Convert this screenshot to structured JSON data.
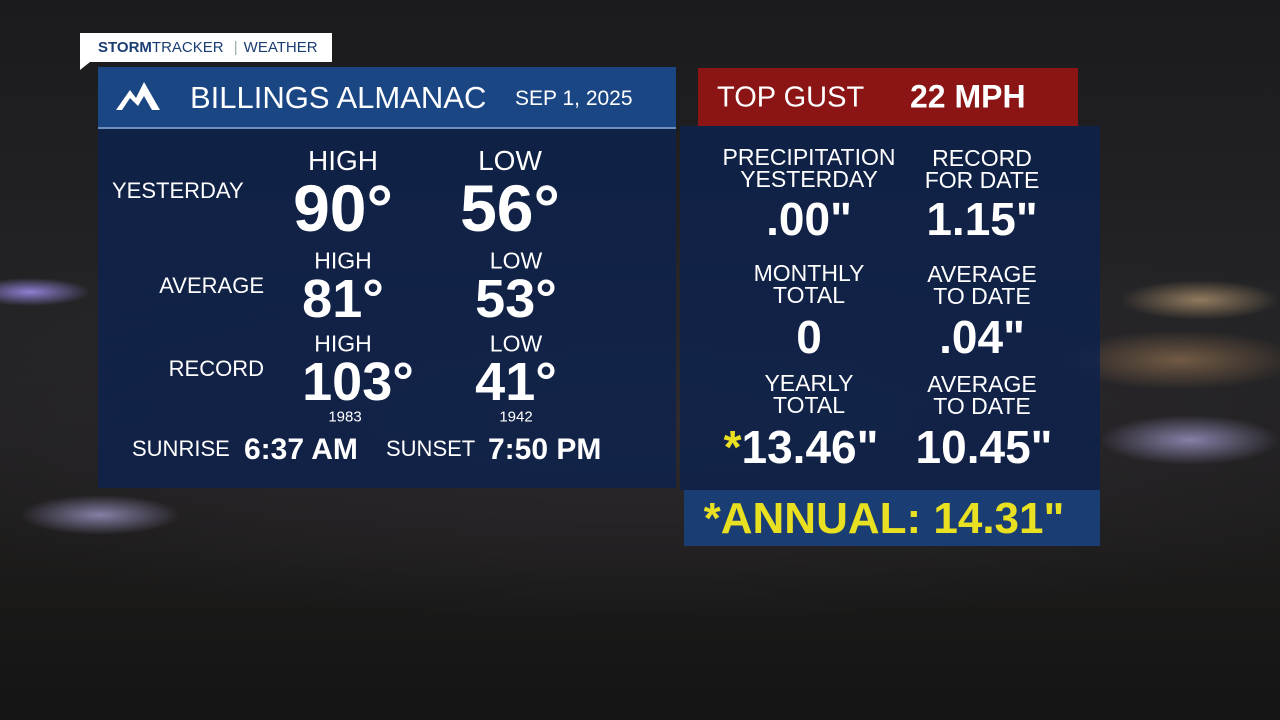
{
  "brand": {
    "bold": "STORM",
    "light": "TRACKER",
    "section": "WEATHER"
  },
  "header": {
    "title": "BILLINGS ALMANAC",
    "date": "SEP 1, 2025"
  },
  "gust": {
    "label": "TOP GUST",
    "value": "22 MPH"
  },
  "temps": {
    "yesterday": {
      "label": "YESTERDAY",
      "high_label": "HIGH",
      "high": "90°",
      "low_label": "LOW",
      "low": "56°"
    },
    "average": {
      "label": "AVERAGE",
      "high_label": "HIGH",
      "high": "81°",
      "low_label": "LOW",
      "low": "53°"
    },
    "record": {
      "label": "RECORD",
      "high_label": "HIGH",
      "high": "103°",
      "high_year": "1983",
      "low_label": "LOW",
      "low": "41°",
      "low_year": "1942"
    },
    "sun": {
      "sunrise_label": "SUNRISE",
      "sunrise": "6:37 AM",
      "sunset_label": "SUNSET",
      "sunset": "7:50 PM"
    }
  },
  "precip": {
    "yesterday": {
      "lines": [
        "PRECIPITATION",
        "YESTERDAY"
      ],
      "value": ".00\""
    },
    "record": {
      "lines": [
        "RECORD",
        "FOR DATE"
      ],
      "value": "1.15\""
    },
    "monthly": {
      "lines": [
        "MONTHLY",
        "TOTAL"
      ],
      "value": "0"
    },
    "monthly_avg": {
      "lines": [
        "AVERAGE",
        "TO DATE"
      ],
      "value": ".04\""
    },
    "yearly": {
      "lines": [
        "YEARLY",
        "TOTAL"
      ],
      "mark": "*",
      "value": "13.46\""
    },
    "yearly_avg": {
      "lines": [
        "AVERAGE",
        "TO DATE"
      ],
      "value": "10.45\""
    }
  },
  "annual": {
    "text": "*ANNUAL: 14.31\""
  }
}
